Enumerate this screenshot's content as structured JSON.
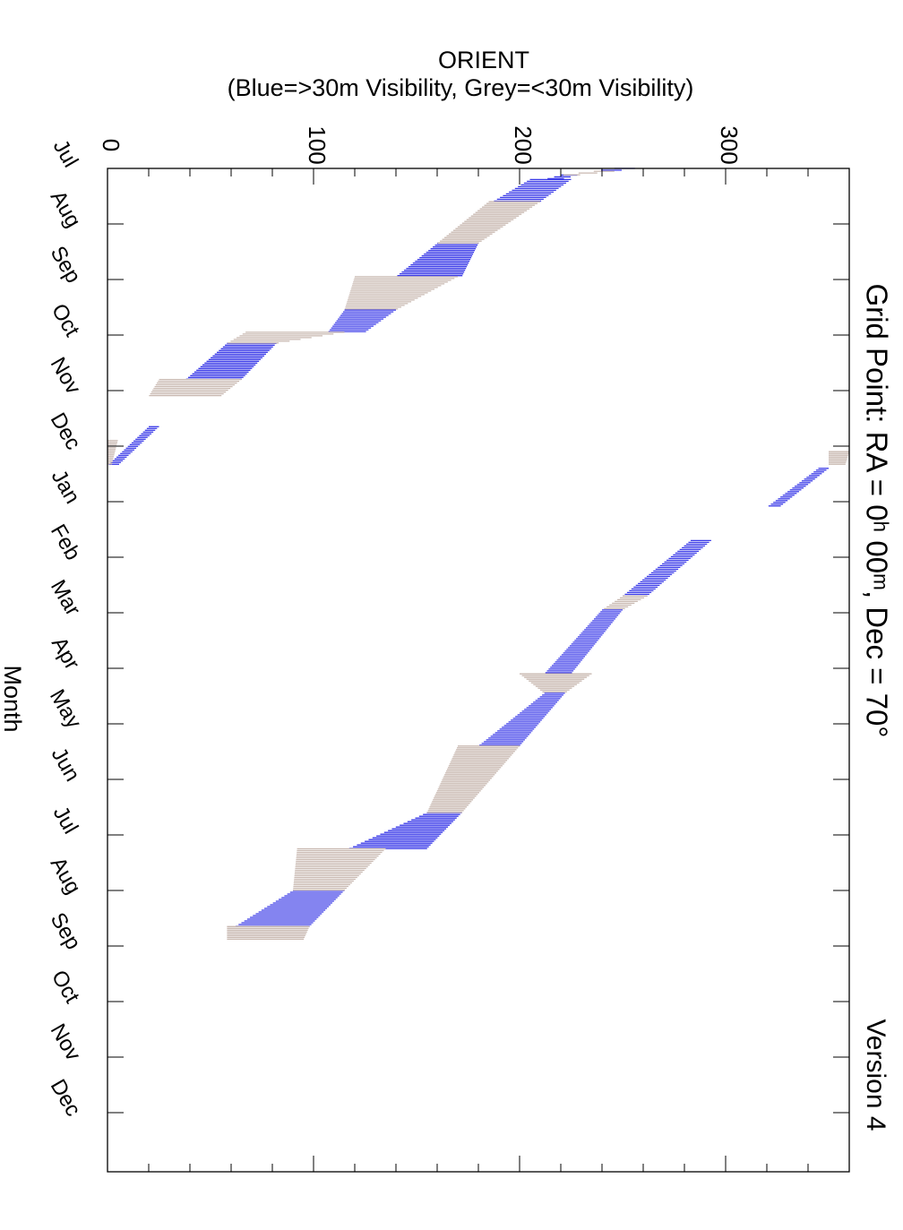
{
  "chart_data": {
    "type": "area",
    "title": "Grid Point: RA = 0ʰ 00ᵐ, Dec = 70°",
    "version_label": "Version 4",
    "ylabel": "ORIENT",
    "ylabel_sub": "(Blue=>30m Visibility, Grey=<30m Visibility)",
    "xlabel": "Month",
    "orient_ticks": [
      "0",
      "100",
      "200",
      "300"
    ],
    "orient_range": [
      0,
      360
    ],
    "month_ticks": [
      "Jul",
      "Aug",
      "Sep",
      "Oct",
      "Nov",
      "Dec",
      "Jan",
      "Feb",
      "Mar",
      "Apr",
      "May",
      "Jun",
      "Jul",
      "Aug",
      "Sep",
      "Oct",
      "Nov",
      "Dec"
    ],
    "colors": {
      "blue": "#3a3ae8",
      "grey": "#c8b8b0"
    },
    "series": [
      {
        "name": "Blue",
        "segments": [
          {
            "t0": 0.0,
            "t1": 0.05,
            "lo0": 246,
            "hi0": 256,
            "lo1": 236,
            "hi1": 246
          },
          {
            "t0": 0.12,
            "t1": 0.2,
            "lo0": 220,
            "hi0": 228,
            "lo1": 212,
            "hi1": 220
          },
          {
            "t0": 0.2,
            "t1": 0.6,
            "lo0": 205,
            "hi0": 225,
            "lo1": 187,
            "hi1": 210
          },
          {
            "t0": 1.35,
            "t1": 1.95,
            "lo0": 160,
            "hi0": 180,
            "lo1": 140,
            "hi1": 172
          },
          {
            "t0": 2.55,
            "t1": 2.95,
            "lo0": 115,
            "hi0": 140,
            "lo1": 107,
            "hi1": 125
          },
          {
            "t0": 3.15,
            "t1": 3.8,
            "lo0": 58,
            "hi0": 82,
            "lo1": 38,
            "hi1": 65
          },
          {
            "t0": 4.65,
            "t1": 5.35,
            "lo0": 20,
            "hi0": 25,
            "lo1": 0,
            "hi1": 5
          },
          {
            "t0": 5.4,
            "t1": 6.1,
            "lo0": 345,
            "hi0": 350,
            "lo1": 320,
            "hi1": 326
          },
          {
            "t0": 6.7,
            "t1": 7.7,
            "lo0": 283,
            "hi0": 293,
            "lo1": 250,
            "hi1": 262
          },
          {
            "t0": 7.95,
            "t1": 9.1,
            "lo0": 240,
            "hi0": 250,
            "lo1": 212,
            "hi1": 225
          },
          {
            "t0": 9.45,
            "t1": 10.4,
            "lo0": 212,
            "hi0": 222,
            "lo1": 180,
            "hi1": 200
          },
          {
            "t0": 11.6,
            "t1": 12.25,
            "lo0": 155,
            "hi0": 172,
            "lo1": 117,
            "hi1": 155
          },
          {
            "t0": 13.0,
            "t1": 13.65,
            "lo0": 90,
            "hi0": 115,
            "lo1": 62,
            "hi1": 98
          }
        ]
      },
      {
        "name": "Grey",
        "segments": [
          {
            "t0": 0.05,
            "t1": 0.12,
            "lo0": 236,
            "hi0": 246,
            "lo1": 220,
            "hi1": 228
          },
          {
            "t0": 0.6,
            "t1": 1.35,
            "lo0": 185,
            "hi0": 210,
            "lo1": 160,
            "hi1": 180
          },
          {
            "t0": 1.95,
            "t1": 2.55,
            "lo0": 120,
            "hi0": 170,
            "lo1": 115,
            "hi1": 140
          },
          {
            "t0": 2.95,
            "t1": 3.15,
            "lo0": 67,
            "hi0": 115,
            "lo1": 58,
            "hi1": 82
          },
          {
            "t0": 3.8,
            "t1": 4.1,
            "lo0": 25,
            "hi0": 65,
            "lo1": 20,
            "hi1": 55
          },
          {
            "t0": 4.9,
            "t1": 5.35,
            "lo0": 0,
            "hi0": 5,
            "lo1": 0,
            "hi1": 2
          },
          {
            "t0": 5.1,
            "t1": 5.35,
            "lo0": 350,
            "hi0": 360,
            "lo1": 350,
            "hi1": 358
          },
          {
            "t0": 7.7,
            "t1": 7.95,
            "lo0": 250,
            "hi0": 262,
            "lo1": 240,
            "hi1": 250
          },
          {
            "t0": 9.1,
            "t1": 9.45,
            "lo0": 200,
            "hi0": 235,
            "lo1": 212,
            "hi1": 222
          },
          {
            "t0": 10.4,
            "t1": 11.6,
            "lo0": 170,
            "hi0": 200,
            "lo1": 155,
            "hi1": 172
          },
          {
            "t0": 12.25,
            "t1": 13.0,
            "lo0": 92,
            "hi0": 135,
            "lo1": 90,
            "hi1": 115
          },
          {
            "t0": 13.65,
            "t1": 13.9,
            "lo0": 58,
            "hi0": 98,
            "lo1": 58,
            "hi1": 95
          }
        ]
      }
    ]
  }
}
